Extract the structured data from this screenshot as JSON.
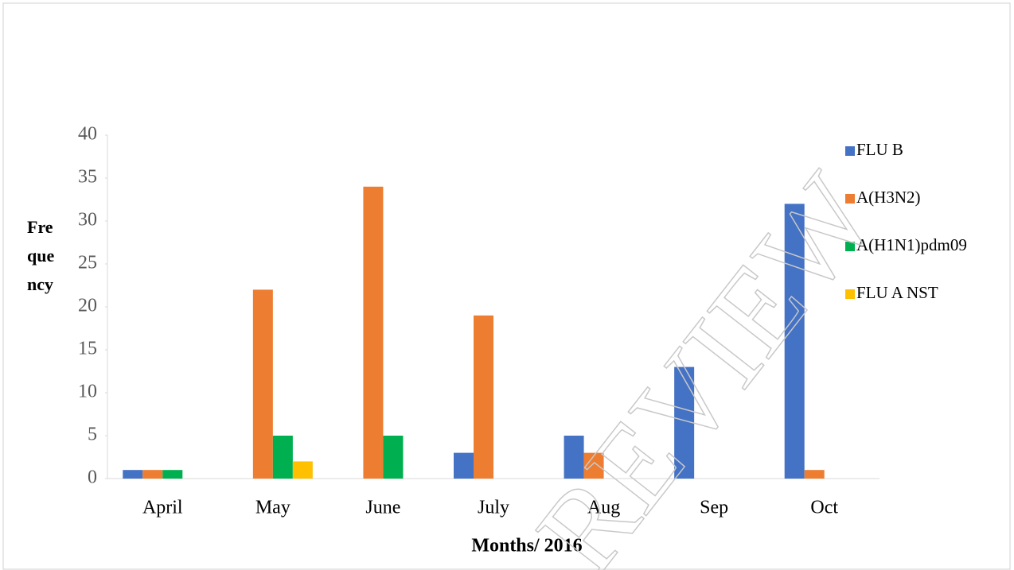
{
  "chart_data": {
    "type": "bar",
    "x_label": "Months/ 2016",
    "y_label": "Frequency",
    "watermark": "REVIEW",
    "categories": [
      "April",
      "May",
      "June",
      "July",
      "Aug",
      "Sep",
      "Oct"
    ],
    "series": [
      {
        "name": "FLU B",
        "color": "#4472c4",
        "values": [
          1,
          0,
          0,
          3,
          5,
          13,
          32
        ]
      },
      {
        "name": "A(H3N2)",
        "color": "#ed7d31",
        "values": [
          1,
          22,
          34,
          19,
          3,
          0,
          1
        ]
      },
      {
        "name": "A(H1N1)pdm09",
        "color": "#00b050",
        "values": [
          1,
          5,
          5,
          0,
          0,
          0,
          0
        ]
      },
      {
        "name": "FLU A NST",
        "color": "#ffc000",
        "values": [
          0,
          2,
          0,
          0,
          0,
          0,
          0
        ]
      }
    ],
    "ylim": [
      0,
      40
    ],
    "yticks": [
      0,
      5,
      10,
      15,
      20,
      25,
      30,
      35,
      40
    ],
    "grid": false,
    "legend": "right"
  }
}
